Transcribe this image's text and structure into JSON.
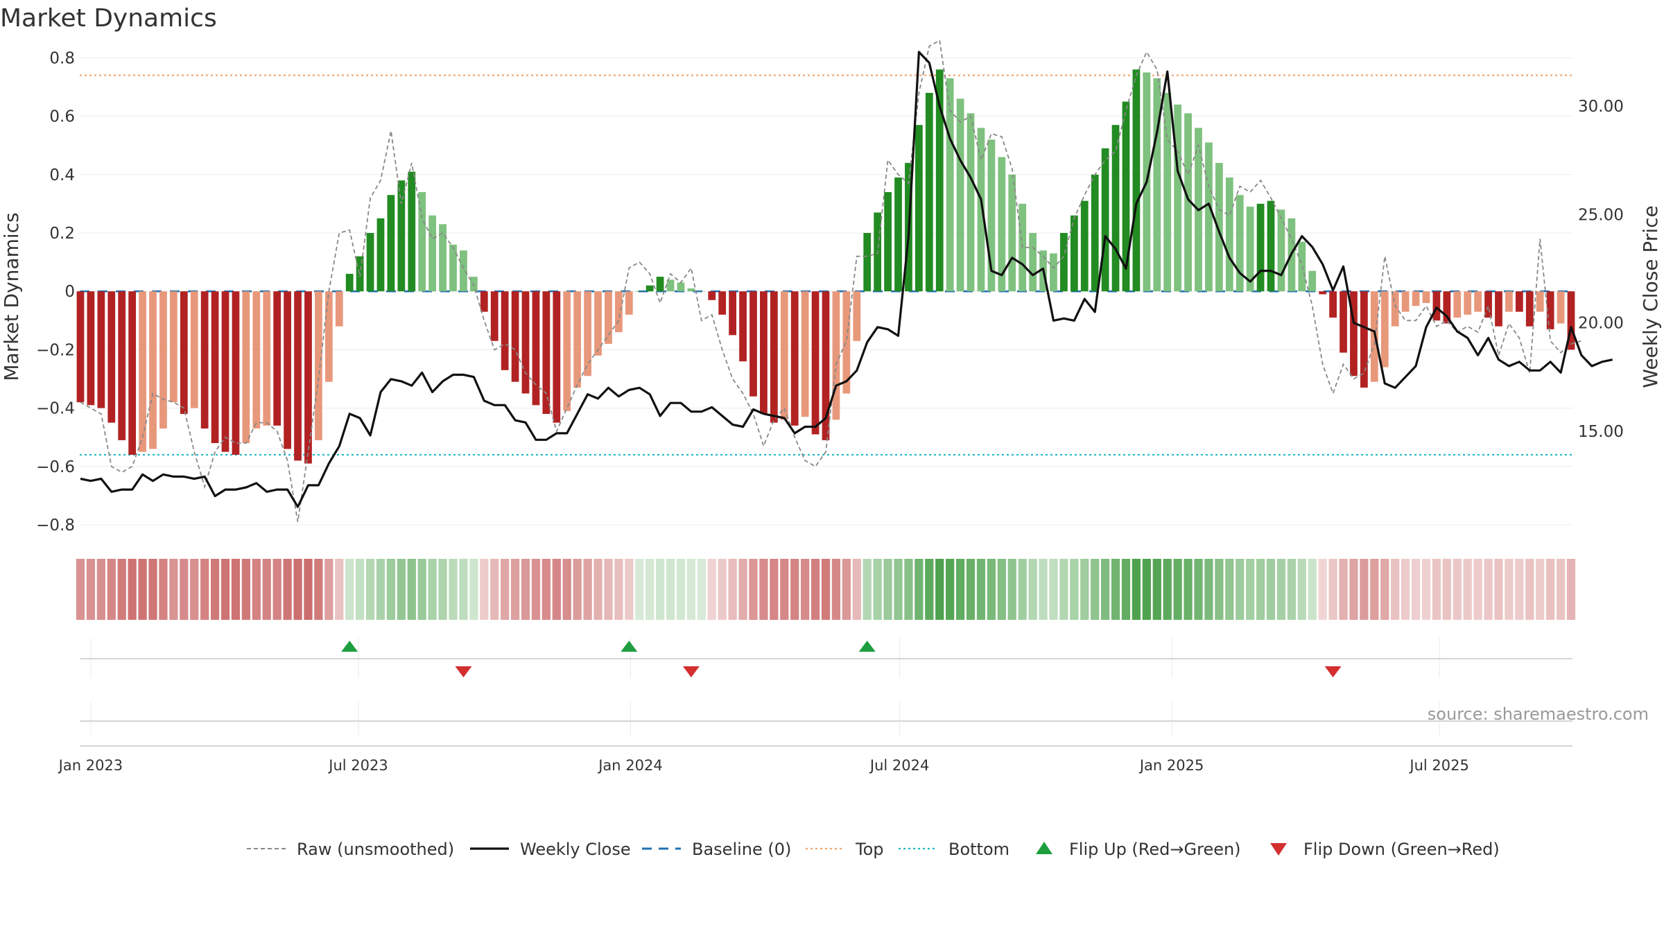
{
  "chart_data": {
    "type": "bar",
    "title": "Market Dynamics",
    "ylabel": "Market Dynamics",
    "y2label": "Weekly Close Price",
    "ylim": [
      -0.85,
      0.82
    ],
    "y2lim": [
      10.0,
      32.5
    ],
    "yticks": [
      "0.8",
      "0.6",
      "0.4",
      "0.2",
      "0",
      "−0.2",
      "−0.4",
      "−0.6",
      "−0.8"
    ],
    "yticks_values": [
      0.8,
      0.6,
      0.4,
      0.2,
      0,
      -0.2,
      -0.4,
      -0.6,
      -0.8
    ],
    "y2ticks": [
      "30.00",
      "25.00",
      "20.00",
      "15.00"
    ],
    "y2ticks_values": [
      30,
      25,
      20,
      15
    ],
    "x_start": "2022-12-25",
    "x_step_days": 7,
    "xticks": [
      "Jan 2023",
      "Jul 2023",
      "Jan 2024",
      "Jul 2024",
      "Jan 2025",
      "Jul 2025"
    ],
    "xticks_dates": [
      "2023-01-01",
      "2023-07-01",
      "2024-01-01",
      "2024-07-01",
      "2025-01-01",
      "2025-07-01"
    ],
    "top_level": 0.74,
    "bottom_level": -0.56,
    "baseline": 0,
    "dynamics": [
      -0.38,
      -0.39,
      -0.4,
      -0.45,
      -0.51,
      -0.56,
      -0.55,
      -0.54,
      -0.47,
      -0.38,
      -0.42,
      -0.4,
      -0.47,
      -0.52,
      -0.55,
      -0.56,
      -0.52,
      -0.47,
      -0.46,
      -0.46,
      -0.54,
      -0.58,
      -0.59,
      -0.51,
      -0.31,
      -0.12,
      0.06,
      0.12,
      0.2,
      0.25,
      0.33,
      0.38,
      0.41,
      0.34,
      0.26,
      0.23,
      0.16,
      0.14,
      0.05,
      -0.07,
      -0.17,
      -0.27,
      -0.31,
      -0.35,
      -0.39,
      -0.42,
      -0.45,
      -0.41,
      -0.33,
      -0.29,
      -0.22,
      -0.18,
      -0.14,
      -0.08,
      0.0,
      0.02,
      0.05,
      0.04,
      0.03,
      0.01,
      0.0,
      -0.03,
      -0.08,
      -0.15,
      -0.24,
      -0.36,
      -0.42,
      -0.45,
      -0.44,
      -0.46,
      -0.43,
      -0.49,
      -0.51,
      -0.44,
      -0.35,
      -0.17,
      0.2,
      0.27,
      0.34,
      0.39,
      0.44,
      0.57,
      0.68,
      0.76,
      0.73,
      0.66,
      0.61,
      0.56,
      0.52,
      0.46,
      0.4,
      0.3,
      0.2,
      0.14,
      0.13,
      0.2,
      0.26,
      0.31,
      0.4,
      0.49,
      0.57,
      0.65,
      0.76,
      0.75,
      0.73,
      0.68,
      0.64,
      0.61,
      0.56,
      0.51,
      0.44,
      0.39,
      0.33,
      0.29,
      0.3,
      0.31,
      0.28,
      0.25,
      0.17,
      0.07,
      -0.01,
      -0.09,
      -0.21,
      -0.29,
      -0.33,
      -0.31,
      -0.26,
      -0.12,
      -0.07,
      -0.05,
      -0.04,
      -0.1,
      -0.11,
      -0.09,
      -0.08,
      -0.07,
      -0.09,
      -0.12,
      -0.07,
      -0.07,
      -0.12,
      -0.07,
      -0.13,
      -0.11,
      -0.2
    ],
    "raw": [
      -0.38,
      -0.4,
      -0.42,
      -0.6,
      -0.62,
      -0.6,
      -0.5,
      -0.35,
      -0.37,
      -0.38,
      -0.4,
      -0.55,
      -0.67,
      -0.55,
      -0.5,
      -0.52,
      -0.52,
      -0.45,
      -0.45,
      -0.48,
      -0.58,
      -0.79,
      -0.55,
      -0.3,
      0.0,
      0.2,
      0.21,
      0.05,
      0.32,
      0.38,
      0.55,
      0.3,
      0.44,
      0.25,
      0.18,
      0.2,
      0.15,
      0.08,
      0.02,
      -0.1,
      -0.2,
      -0.18,
      -0.2,
      -0.28,
      -0.32,
      -0.35,
      -0.48,
      -0.4,
      -0.32,
      -0.25,
      -0.2,
      -0.15,
      -0.1,
      0.08,
      0.1,
      0.06,
      -0.04,
      0.06,
      0.03,
      0.08,
      -0.1,
      -0.08,
      -0.2,
      -0.3,
      -0.35,
      -0.42,
      -0.53,
      -0.44,
      -0.4,
      -0.5,
      -0.58,
      -0.6,
      -0.55,
      -0.25,
      -0.17,
      0.12,
      0.12,
      0.13,
      0.45,
      0.4,
      0.37,
      0.68,
      0.84,
      0.86,
      0.62,
      0.58,
      0.6,
      0.45,
      0.54,
      0.53,
      0.42,
      0.15,
      0.15,
      0.12,
      0.08,
      0.12,
      0.25,
      0.33,
      0.4,
      0.45,
      0.48,
      0.62,
      0.74,
      0.82,
      0.76,
      0.52,
      0.48,
      0.4,
      0.5,
      0.36,
      0.28,
      0.26,
      0.36,
      0.34,
      0.38,
      0.32,
      0.25,
      0.18,
      0.09,
      -0.05,
      -0.25,
      -0.35,
      -0.25,
      -0.3,
      -0.28,
      -0.18,
      0.12,
      -0.05,
      -0.1,
      -0.1,
      -0.05,
      -0.12,
      -0.1,
      -0.14,
      -0.12,
      -0.14,
      -0.05,
      -0.22,
      -0.11,
      -0.16,
      -0.28,
      0.18,
      -0.17,
      -0.21,
      -0.18,
      -0.17
    ],
    "close": [
      12.8,
      12.7,
      12.8,
      12.2,
      12.3,
      12.3,
      13.0,
      12.7,
      13.0,
      12.9,
      12.9,
      12.8,
      12.9,
      12.0,
      12.3,
      12.3,
      12.4,
      12.6,
      12.2,
      12.3,
      12.3,
      11.5,
      12.5,
      12.5,
      13.5,
      14.3,
      15.8,
      15.6,
      14.8,
      16.8,
      17.4,
      17.3,
      17.1,
      17.7,
      16.8,
      17.3,
      17.6,
      17.6,
      17.5,
      16.4,
      16.2,
      16.2,
      15.5,
      15.4,
      14.6,
      14.6,
      14.9,
      14.9,
      15.8,
      16.7,
      16.5,
      17.0,
      16.6,
      16.9,
      17.0,
      16.7,
      15.7,
      16.3,
      16.3,
      15.9,
      15.9,
      16.1,
      15.7,
      15.3,
      15.2,
      16.0,
      15.8,
      15.7,
      15.6,
      14.9,
      15.2,
      15.2,
      15.6,
      17.1,
      17.3,
      17.8,
      19.1,
      19.8,
      19.7,
      19.4,
      24.0,
      32.5,
      32.0,
      30.0,
      28.5,
      27.5,
      26.7,
      25.7,
      22.4,
      22.2,
      23.0,
      22.7,
      22.2,
      22.5,
      20.1,
      20.2,
      20.1,
      21.1,
      20.5,
      24.0,
      23.4,
      22.5,
      25.5,
      26.5,
      28.8,
      31.6,
      27.0,
      25.7,
      25.2,
      25.5,
      24.2,
      23.0,
      22.3,
      21.9,
      22.4,
      22.4,
      22.2,
      23.2,
      24.0,
      23.5,
      22.7,
      21.5,
      22.6,
      20.0,
      19.8,
      19.6,
      17.2,
      17.0,
      17.5,
      18.0,
      19.8,
      20.7,
      20.3,
      19.6,
      19.3,
      18.5,
      19.3,
      18.3,
      18.0,
      18.2,
      17.8,
      17.8,
      18.2,
      17.7,
      19.8,
      18.5,
      18.0,
      18.2,
      18.3
    ],
    "flip_up": [
      "2023-06-25",
      "2023-12-31",
      "2024-06-09"
    ],
    "flip_down": [
      "2023-09-10",
      "2024-02-11",
      "2025-04-20"
    ],
    "legend": [
      {
        "label": "Raw (unsmoothed)",
        "style": "dashed-line",
        "color": "#888888"
      },
      {
        "label": "Weekly Close",
        "style": "solid-line",
        "color": "#111111"
      },
      {
        "label": "Baseline (0)",
        "style": "dashed-line",
        "color": "#1f6fb0"
      },
      {
        "label": "Top",
        "style": "dotted-line",
        "color": "#f0a36b"
      },
      {
        "label": "Bottom",
        "style": "dotted-line",
        "color": "#20b8c4"
      },
      {
        "label": "Flip Up (Red→Green)",
        "style": "triangle-up",
        "color": "#1e9e3e"
      },
      {
        "label": "Flip Down (Green→Red)",
        "style": "triangle-down",
        "color": "#d32f2f"
      }
    ],
    "colors": {
      "strong_red": "#b22222",
      "light_red": "#e8987a",
      "strong_green": "#228b22",
      "light_green": "#7fc17f",
      "raw": "#888888",
      "close": "#111111",
      "baseline": "#1f6fb0",
      "top": "#f0a36b",
      "bottom": "#20b8c4",
      "flip_up": "#1e9e3e",
      "flip_down": "#d32f2f"
    },
    "legend_placement": "bottom-center",
    "grid": true
  },
  "source": "source: sharemaestro.com"
}
